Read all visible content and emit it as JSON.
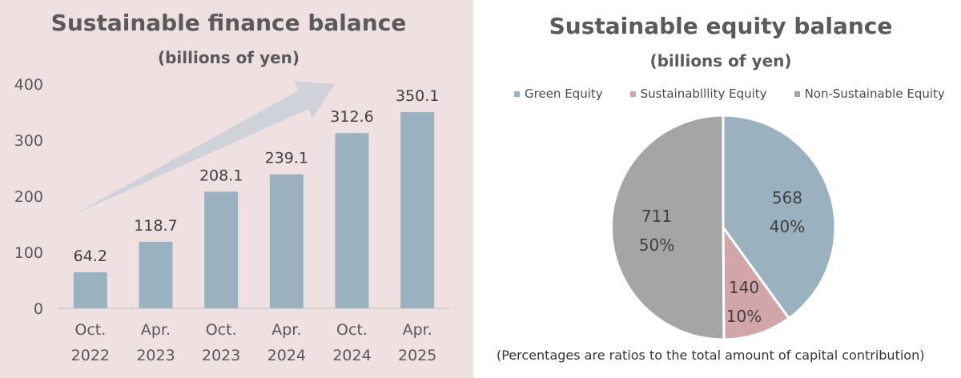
{
  "chart_data": [
    {
      "type": "bar",
      "title": "Sustainable finance balance",
      "subtitle": "(billions of yen)",
      "categories": [
        [
          "Oct.",
          "2022"
        ],
        [
          "Apr.",
          "2023"
        ],
        [
          "Oct.",
          "2023"
        ],
        [
          "Apr.",
          "2024"
        ],
        [
          "Oct.",
          "2024"
        ],
        [
          "Apr.",
          "2025"
        ]
      ],
      "values": [
        64.2,
        118.7,
        208.1,
        239.1,
        312.6,
        350.1
      ],
      "value_labels": [
        "64.2",
        "118.7",
        "208.1",
        "239.1",
        "312.6",
        "350.1"
      ],
      "yticks": [
        0,
        100,
        200,
        300,
        400
      ],
      "ylim": [
        0,
        400
      ],
      "grid": false,
      "trend_arrow": true,
      "colors": {
        "bar": "#9ab2bf",
        "arrow": "#cfd2d8",
        "background": "#efe0e2",
        "axis": "#bfbfbf"
      }
    },
    {
      "type": "pie",
      "title": "Sustainable equity balance",
      "subtitle": "(billions of yen)",
      "legend": {
        "position": "top"
      },
      "slices": [
        {
          "label": "Green Equity",
          "value": 568,
          "value_label": "568",
          "percent_label": "40%",
          "color": "#9ab2bf"
        },
        {
          "label": "Sustainablllity Equity",
          "value": 140,
          "value_label": "140",
          "percent_label": "10%",
          "color": "#d2a6a9"
        },
        {
          "label": "Non-Sustainable Equity",
          "value": 711,
          "value_label": "711",
          "percent_label": "50%",
          "color": "#a5a5a5"
        }
      ],
      "note": "(Percentages are ratios to the total amount of capital contribution)"
    }
  ]
}
